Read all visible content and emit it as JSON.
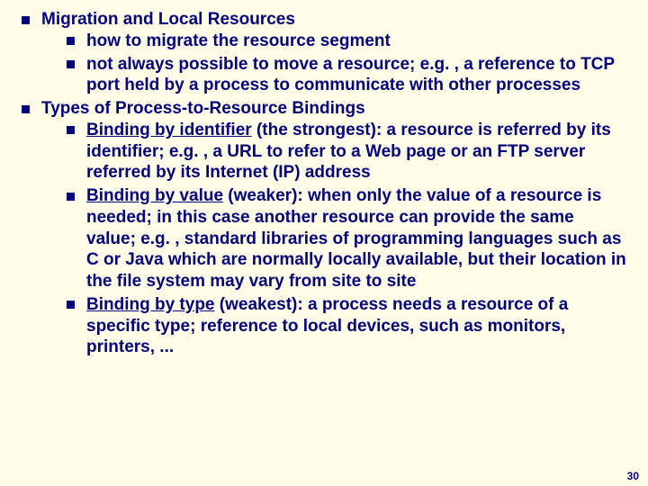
{
  "colors": {
    "background": "#fffde8",
    "text": "#03037a",
    "bullet": "#03037a"
  },
  "typography": {
    "family": "Arial",
    "size_pt": 19,
    "weight": "bold",
    "line_height": 1.25
  },
  "page_number": "30",
  "section1": {
    "title": "Migration and Local Resources",
    "items": [
      "how to migrate the resource segment",
      "not always possible to move a resource; e.g. , a reference to TCP port held by a process to communicate with other processes"
    ]
  },
  "section2": {
    "title": "Types of Process-to-Resource Bindings",
    "items": [
      {
        "lead": "Binding by identifier",
        "rest": " (the strongest): a resource is referred by its identifier; e.g. , a URL to refer to a Web page or an FTP server referred by its Internet (IP) address"
      },
      {
        "lead": "Binding by value",
        "rest": " (weaker): when only the value of a resource is needed; in this case another resource can provide the same value; e.g. , standard libraries of programming languages such as C or Java which are normally locally available, but their location in the file system may vary from site to site"
      },
      {
        "lead": "Binding by type",
        "rest": " (weakest): a process needs a resource of a specific type; reference to local devices, such as monitors, printers, ..."
      }
    ]
  }
}
